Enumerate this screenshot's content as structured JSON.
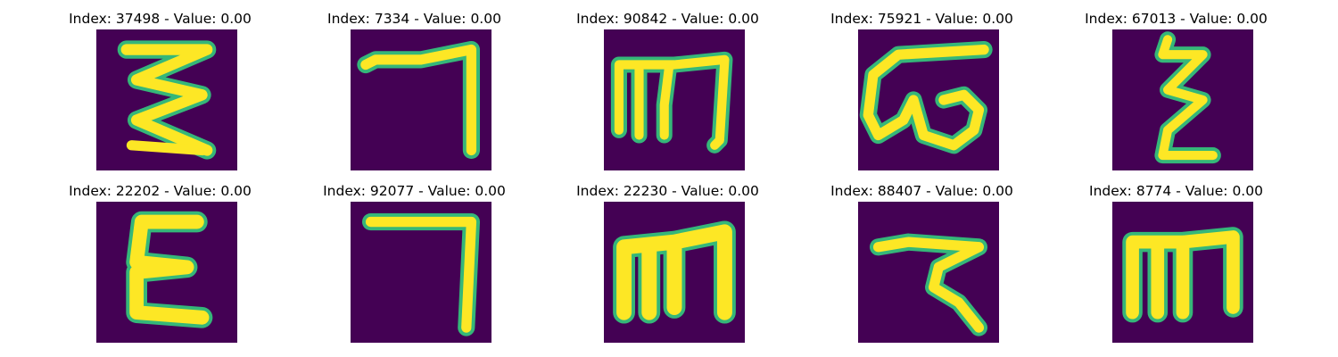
{
  "colors": {
    "background": "#440154",
    "stroke_core": "#fde725",
    "stroke_edge": "#35b779",
    "stroke_mid": "#21918c"
  },
  "panels": [
    {
      "title": "Index: 37498 - Value: 0.00",
      "glyph": "zigzag-three-stroke"
    },
    {
      "title": "Index: 7334 - Value: 0.00",
      "glyph": "hook-seven"
    },
    {
      "title": "Index: 90842 - Value: 0.00",
      "glyph": "m-shape-thin"
    },
    {
      "title": "Index: 75921 - Value: 0.00",
      "glyph": "loop-w-shape"
    },
    {
      "title": "Index: 67013 - Value: 0.00",
      "glyph": "narrow-zigzag"
    },
    {
      "title": "Index: 22202 - Value: 0.00",
      "glyph": "epsilon-shape"
    },
    {
      "title": "Index: 92077 - Value: 0.00",
      "glyph": "hook-seven-straight"
    },
    {
      "title": "Index: 22230 - Value: 0.00",
      "glyph": "m-shape-bold"
    },
    {
      "title": "Index: 88407 - Value: 0.00",
      "glyph": "curly-seven"
    },
    {
      "title": "Index: 8774 - Value: 0.00",
      "glyph": "m-shape-boxy"
    }
  ]
}
